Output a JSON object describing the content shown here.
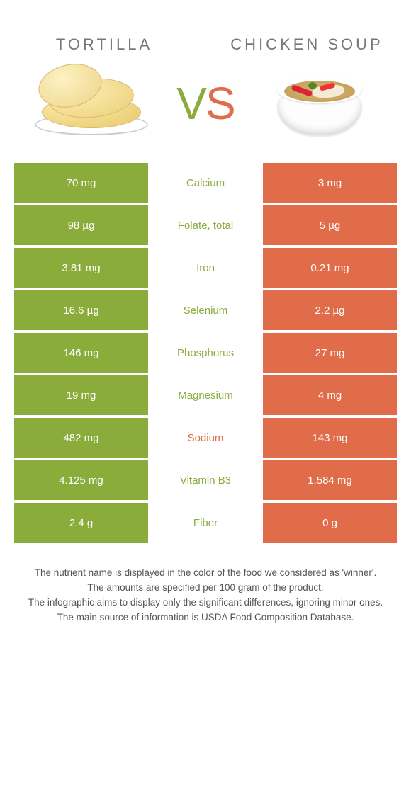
{
  "header": {
    "left_title": "Tortilla",
    "right_title": "Chicken soup",
    "vs_v": "V",
    "vs_s": "S"
  },
  "colors": {
    "left": "#8aac3a",
    "right": "#e06c4a",
    "background": "#ffffff"
  },
  "rows": [
    {
      "left": "70 mg",
      "label": "Calcium",
      "right": "3 mg",
      "winner": "left"
    },
    {
      "left": "98 µg",
      "label": "Folate, total",
      "right": "5 µg",
      "winner": "left"
    },
    {
      "left": "3.81 mg",
      "label": "Iron",
      "right": "0.21 mg",
      "winner": "left"
    },
    {
      "left": "16.6 µg",
      "label": "Selenium",
      "right": "2.2 µg",
      "winner": "left"
    },
    {
      "left": "146 mg",
      "label": "Phosphorus",
      "right": "27 mg",
      "winner": "left"
    },
    {
      "left": "19 mg",
      "label": "Magnesium",
      "right": "4 mg",
      "winner": "left"
    },
    {
      "left": "482 mg",
      "label": "Sodium",
      "right": "143 mg",
      "winner": "right"
    },
    {
      "left": "4.125 mg",
      "label": "Vitamin B3",
      "right": "1.584 mg",
      "winner": "left"
    },
    {
      "left": "2.4 g",
      "label": "Fiber",
      "right": "0 g",
      "winner": "left"
    }
  ],
  "notes": [
    "The nutrient name is displayed in the color of the food we considered as 'winner'.",
    "The amounts are specified per 100 gram of the product.",
    "The infographic aims to display only the significant differences, ignoring minor ones.",
    "The main source of information is USDA Food Composition Database."
  ]
}
